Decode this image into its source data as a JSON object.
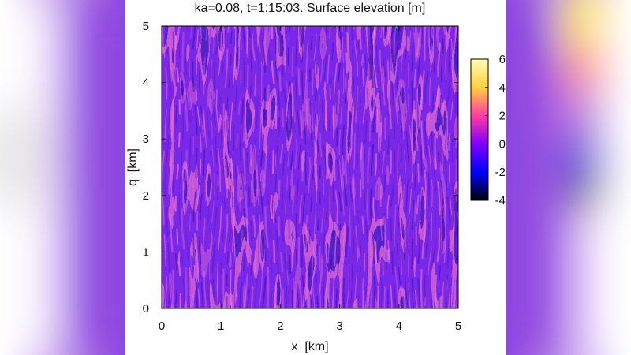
{
  "chart_data": {
    "type": "heatmap",
    "title": "ka=0.08, t=1:15:03. Surface elevation [m]",
    "xlabel": "x  [km]",
    "ylabel": "q  [km]",
    "xlim": [
      0,
      5
    ],
    "ylim": [
      0,
      5
    ],
    "x_ticks": [
      "0",
      "1",
      "2",
      "3",
      "4",
      "5"
    ],
    "y_ticks": [
      "0",
      "1",
      "2",
      "3",
      "4",
      "5"
    ],
    "colorbar": {
      "range": [
        -4,
        6
      ],
      "ticks": [
        "6",
        "4",
        "2",
        "0",
        "-2",
        "-4"
      ],
      "colors": [
        "#000000",
        "#0000ff",
        "#8000ff",
        "#ff3da0",
        "#ffd040",
        "#ffffb0"
      ]
    },
    "field": {
      "description_units": "m",
      "dominant_value": 0,
      "crest_value_typical": 3,
      "trough_value_typical": -2,
      "crest_wavelength_km": 0.115,
      "crest_orientation": "near-vertical (aligned with q axis)"
    },
    "colors": {
      "background_side": "#8f4bdc",
      "field_base": "#7a28e8",
      "crest": "#ff7ac8",
      "trough": "#2a10b0"
    }
  }
}
